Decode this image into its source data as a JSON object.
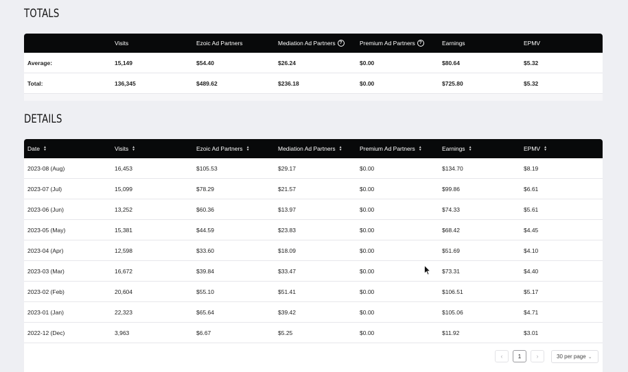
{
  "totals": {
    "title": "TOTALS",
    "headers": [
      "",
      "Visits",
      "Ezoic Ad Partners",
      "Mediation Ad Partners",
      "Premium Ad Partners",
      "Earnings",
      "EPMV"
    ],
    "rows": [
      [
        "Average:",
        "15,149",
        "$54.40",
        "$26.24",
        "$0.00",
        "$80.64",
        "$5.32"
      ],
      [
        "Total:",
        "136,345",
        "$489.62",
        "$236.18",
        "$0.00",
        "$725.80",
        "$5.32"
      ]
    ]
  },
  "details": {
    "title": "DETAILS",
    "headers": [
      "Date",
      "Visits",
      "Ezoic Ad Partners",
      "Mediation Ad Partners",
      "Premium Ad Partners",
      "Earnings",
      "EPMV"
    ],
    "rows": [
      [
        "2023-08 (Aug)",
        "16,453",
        "$105.53",
        "$29.17",
        "$0.00",
        "$134.70",
        "$8.19"
      ],
      [
        "2023-07 (Jul)",
        "15,099",
        "$78.29",
        "$21.57",
        "$0.00",
        "$99.86",
        "$6.61"
      ],
      [
        "2023-06 (Jun)",
        "13,252",
        "$60.36",
        "$13.97",
        "$0.00",
        "$74.33",
        "$5.61"
      ],
      [
        "2023-05 (May)",
        "15,381",
        "$44.59",
        "$23.83",
        "$0.00",
        "$68.42",
        "$4.45"
      ],
      [
        "2023-04 (Apr)",
        "12,598",
        "$33.60",
        "$18.09",
        "$0.00",
        "$51.69",
        "$4.10"
      ],
      [
        "2023-03 (Mar)",
        "16,672",
        "$39.84",
        "$33.47",
        "$0.00",
        "$73.31",
        "$4.40"
      ],
      [
        "2023-02 (Feb)",
        "20,604",
        "$55.10",
        "$51.41",
        "$0.00",
        "$106.51",
        "$5.17"
      ],
      [
        "2023-01 (Jan)",
        "22,323",
        "$65.64",
        "$39.42",
        "$0.00",
        "$105.06",
        "$4.71"
      ],
      [
        "2022-12 (Dec)",
        "3,963",
        "$6.67",
        "$5.25",
        "$0.00",
        "$11.92",
        "$3.01"
      ]
    ]
  },
  "pagination": {
    "prev_icon": "chevron-left-icon",
    "next_icon": "chevron-right-icon",
    "current_page": "1",
    "per_page": "30 per page"
  },
  "icons": {
    "help": "?",
    "sort": "sort-icon",
    "cursor": "mouse-pointer-icon"
  }
}
